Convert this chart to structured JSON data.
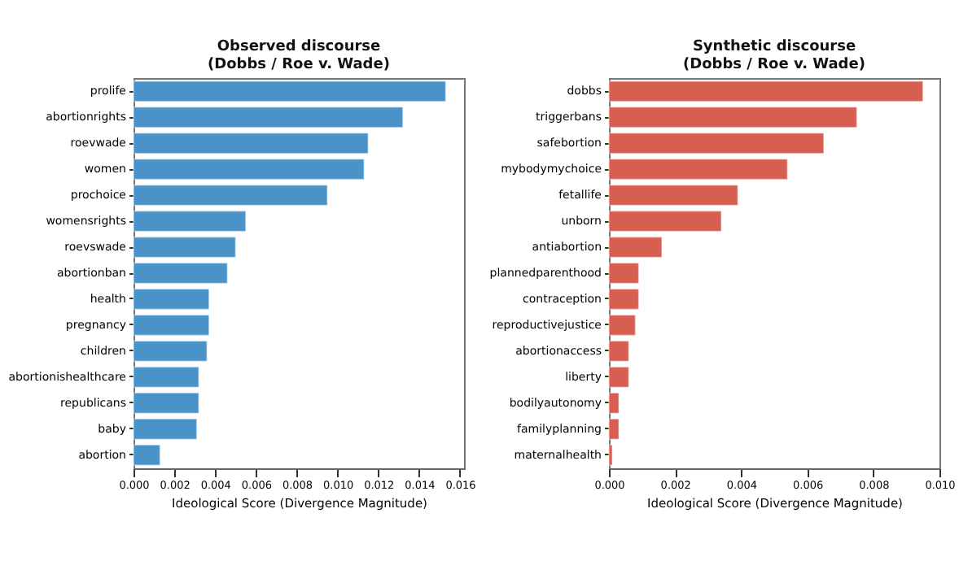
{
  "chart_data": [
    {
      "type": "bar",
      "orientation": "horizontal",
      "title": "Observed discourse\n(Dobbs / Roe v. Wade)",
      "xlabel": "Ideological Score (Divergence Magnitude)",
      "categories": [
        "prolife",
        "abortionrights",
        "roevwade",
        "women",
        "prochoice",
        "womensrights",
        "roevswade",
        "abortionban",
        "health",
        "pregnancy",
        "children",
        "abortionishealthcare",
        "republicans",
        "baby",
        "abortion"
      ],
      "values": [
        0.0153,
        0.0132,
        0.0115,
        0.0113,
        0.0095,
        0.0055,
        0.005,
        0.0046,
        0.0037,
        0.0037,
        0.0036,
        0.0032,
        0.0032,
        0.0031,
        0.0013
      ],
      "color": "#4a93c9",
      "xlim": [
        0,
        0.0162
      ],
      "xticks": [
        {
          "value": 0,
          "label": "0.000"
        },
        {
          "value": 0.002,
          "label": "0.002"
        },
        {
          "value": 0.004,
          "label": "0.004"
        },
        {
          "value": 0.006,
          "label": "0.006"
        },
        {
          "value": 0.008,
          "label": "0.008"
        },
        {
          "value": 0.01,
          "label": "0.010"
        },
        {
          "value": 0.012,
          "label": "0.012"
        },
        {
          "value": 0.014,
          "label": "0.014"
        },
        {
          "value": 0.016,
          "label": "0.016"
        }
      ],
      "grid": false
    },
    {
      "type": "bar",
      "orientation": "horizontal",
      "title": "Synthetic discourse\n(Dobbs / Roe v. Wade)",
      "xlabel": "Ideological Score (Divergence Magnitude)",
      "categories": [
        "dobbs",
        "triggerbans",
        "safebortion",
        "mybodymychoice",
        "fetallife",
        "unborn",
        "antiabortion",
        "plannedparenthood",
        "contraception",
        "reproductivejustice",
        "abortionaccess",
        "liberty",
        "bodilyautonomy",
        "familyplanning",
        "maternalhealth"
      ],
      "values": [
        0.0095,
        0.0075,
        0.0065,
        0.0054,
        0.0039,
        0.0034,
        0.0016,
        0.0009,
        0.0009,
        0.0008,
        0.0006,
        0.0006,
        0.0003,
        0.0003,
        0.0001
      ],
      "color": "#d65f52",
      "xlim": [
        0,
        0.01
      ],
      "xticks": [
        {
          "value": 0,
          "label": "0.000"
        },
        {
          "value": 0.002,
          "label": "0.002"
        },
        {
          "value": 0.004,
          "label": "0.004"
        },
        {
          "value": 0.006,
          "label": "0.006"
        },
        {
          "value": 0.008,
          "label": "0.008"
        },
        {
          "value": 0.01,
          "label": "0.010"
        }
      ],
      "grid": false
    }
  ]
}
